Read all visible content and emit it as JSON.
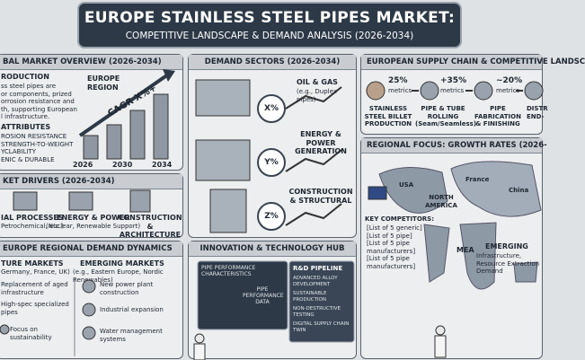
{
  "header": {
    "title": "EUROPE STAINLESS STEEL PIPES MARKET:",
    "subtitle": "COMPETITIVE LANDSCAPE & DEMAND ANALYSIS (2026-2034)"
  },
  "overview": {
    "title": "BAL MARKET OVERVIEW (2026-2034)",
    "intro_heading": "RODUCTION",
    "intro_text": [
      "ss steel pipes are",
      "or components, prized",
      "orrosion resistance and",
      "th, supporting European",
      "l infrastructure."
    ],
    "region": "EUROPE REGION",
    "cagr": "CAGR X%+",
    "years": [
      "2026",
      "2030",
      "2034"
    ],
    "attr_heading": "ATTRIBUTES",
    "attributes": [
      "ROSION RESISTANCE",
      "STRENGTH-TO-WEIGHT",
      "YCLABILITY",
      "ENIC & DURABLE"
    ]
  },
  "drivers": {
    "title": "KET DRIVERS (2026-2034)",
    "items": [
      {
        "label": "IAL PROCESSES",
        "sub": "Petrochemical, etc.)"
      },
      {
        "label": "ENERGY & POWER",
        "sub": "(Nuclear, Renewable Support)"
      },
      {
        "label": "CONSTRUCTION & ARCHITECTURE"
      }
    ]
  },
  "regional": {
    "title": "EUROPE REGIONAL DEMAND DYNAMICS",
    "mature": {
      "heading": "TURE MARKETS",
      "sub": "Germany, France, UK)",
      "items": [
        "Replacement of aged infrastructure",
        "High-spec specialized pipes",
        "Focus on sustainability"
      ]
    },
    "emerging": {
      "heading": "EMERGING MARKETS",
      "sub": "(e.g., Eastern Europe, Nordic Renewables)",
      "items": [
        "New power plant construction",
        "Industrial expansion",
        "Water management systems"
      ]
    }
  },
  "sectors": {
    "title": "DEMAND SECTORS (2026-2034)",
    "items": [
      {
        "badge": "X%",
        "label": "OIL & GAS",
        "sub": "(e.g., Duplex pipes)"
      },
      {
        "badge": "Y%",
        "label": "ENERGY & POWER GENERATION"
      },
      {
        "badge": "Z%",
        "label": "CONSTRUCTION & STRUCTURAL"
      }
    ]
  },
  "innovation": {
    "title": "INNOVATION & TECHNOLOGY HUB",
    "screen_title": "PIPE PERFORMANCE CHARACTERISTICS",
    "screen_data": "PIPE PERFORMANCE DATA",
    "pipeline_title": "R&D PIPELINE",
    "pipeline": [
      "ADVANCED ALLOY DEVELOPMENT",
      "SUSTAINABLE PRODUCTION",
      "NON-DESTRUCTIVE TESTING",
      "DIGITAL SUPPLY CHAIN TWIN"
    ]
  },
  "supply": {
    "title": "EUROPEAN SUPPLY CHAIN & COMPETITIVE LANDSC",
    "steps": [
      {
        "pct": "25%",
        "sub": "metrics",
        "label": "STAINLESS STEEL BILLET PRODUCTION"
      },
      {
        "pct": "+35%",
        "sub": "metrics",
        "label": "PIPE & TUBE ROLLING (Seam/Seamless)"
      },
      {
        "pct": "~20%",
        "sub": "metrics",
        "label": "PIPE FABRICATION & FINISHING"
      },
      {
        "label": "DISTR END-"
      }
    ]
  },
  "focus": {
    "title": "REGIONAL FOCUS: GROWTH RATES (2026-",
    "regions": [
      "USA",
      "NORTH AMERICA",
      "France",
      "China",
      "MEA",
      "EMERGING"
    ],
    "emerging_sub": "Infrastructure, Resource Extraction Demand",
    "competitors_heading": "KEY COMPETITORS:",
    "competitors": [
      "[List of 5 generic]",
      "[List of 5 pipe]",
      "[List of 5 pipe manufacturers]",
      "[List of 5 pipe manufacturers]"
    ]
  }
}
